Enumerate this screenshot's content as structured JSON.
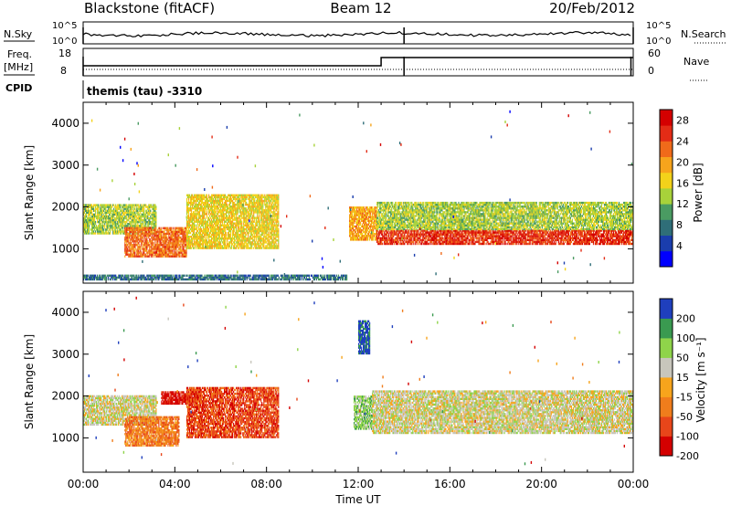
{
  "header": {
    "station": "Blackstone (fitACF)",
    "beam": "Beam 12",
    "date": "20/Feb/2012"
  },
  "summary_panel": {
    "nsky_label": "N.Sky",
    "nsearch_label": "N.Search",
    "nsky_ticks": [
      "10^5",
      "10^0"
    ],
    "nsearch_ticks": [
      "10^5",
      "10^0"
    ],
    "freq_label_top": "Freq.",
    "freq_label_units": "[MHz]",
    "freq_ticks": [
      "18",
      "8"
    ],
    "nave_label": "Nave",
    "nave_ticks": [
      "60",
      "0"
    ],
    "cpid_label": "CPID",
    "cpid_value": "themis (tau) -3310"
  },
  "chart_data": [
    {
      "type": "heatmap",
      "title": "",
      "quantity": "Power",
      "ylabel": "Slant Range [km]",
      "ylim": [
        180,
        4500
      ],
      "yticks": [
        1000,
        2000,
        3000,
        4000
      ],
      "xlabel": "",
      "xlim_hours": [
        0,
        24
      ],
      "colorbar_label": "Power [dB]",
      "colorbar_ticks": [
        "4",
        "8",
        "12",
        "16",
        "20",
        "24",
        "28"
      ],
      "colorbar_range": [
        0,
        30
      ],
      "colors": [
        "#0000ff",
        "#1a3dad",
        "#2f6e78",
        "#4a9b62",
        "#a8d23a",
        "#f3d21a",
        "#f7a41c",
        "#f06a1a",
        "#e32c16",
        "#d40000"
      ],
      "echo_regions": [
        {
          "t": [
            0.0,
            3.2
          ],
          "range": [
            1350,
            2050
          ],
          "power": 14
        },
        {
          "t": [
            1.8,
            4.5
          ],
          "range": [
            800,
            1500
          ],
          "power": 22
        },
        {
          "t": [
            4.5,
            8.5
          ],
          "range": [
            1000,
            2300
          ],
          "power": 16
        },
        {
          "t": [
            11.6,
            12.8
          ],
          "range": [
            1200,
            2000
          ],
          "power": 20
        },
        {
          "t": [
            12.8,
            24.0
          ],
          "range": [
            1100,
            1450
          ],
          "power": 26
        },
        {
          "t": [
            12.8,
            24.0
          ],
          "range": [
            1450,
            2100
          ],
          "power": 12
        },
        {
          "t": [
            0.0,
            11.5
          ],
          "range": [
            250,
            350
          ],
          "power": 8
        }
      ]
    },
    {
      "type": "heatmap",
      "title": "",
      "quantity": "Velocity",
      "ylabel": "Slant Range [km]",
      "ylim": [
        180,
        4500
      ],
      "yticks": [
        1000,
        2000,
        3000,
        4000
      ],
      "xlabel": "Time UT",
      "xlim_hours": [
        0,
        24
      ],
      "xtick_labels": [
        "00:00",
        "04:00",
        "08:00",
        "12:00",
        "16:00",
        "20:00",
        "00:00"
      ],
      "colorbar_label": "Velocity [m s⁻¹]",
      "colorbar_ticks": [
        "200",
        "100",
        "50",
        "15",
        "-15",
        "-50",
        "-100",
        "-200"
      ],
      "colors": [
        "#d40000",
        "#e8461a",
        "#f07d1c",
        "#f7a41c",
        "#c8c6bc",
        "#8fd44a",
        "#3a9a50",
        "#1f3fbd"
      ],
      "echo_regions": [
        {
          "t": [
            0.0,
            3.2
          ],
          "range": [
            1300,
            2000
          ],
          "velocity": 0
        },
        {
          "t": [
            1.8,
            4.2
          ],
          "range": [
            800,
            1500
          ],
          "velocity": -60
        },
        {
          "t": [
            3.4,
            5.0
          ],
          "range": [
            1800,
            2100
          ],
          "velocity": -220
        },
        {
          "t": [
            4.5,
            8.5
          ],
          "range": [
            1000,
            2200
          ],
          "velocity": -120
        },
        {
          "t": [
            11.8,
            12.6
          ],
          "range": [
            1200,
            2000
          ],
          "velocity": 40
        },
        {
          "t": [
            12.6,
            24.0
          ],
          "range": [
            1100,
            2100
          ],
          "velocity": 0
        },
        {
          "t": [
            12.0,
            12.5
          ],
          "range": [
            3000,
            3800
          ],
          "velocity": 220
        }
      ]
    }
  ]
}
